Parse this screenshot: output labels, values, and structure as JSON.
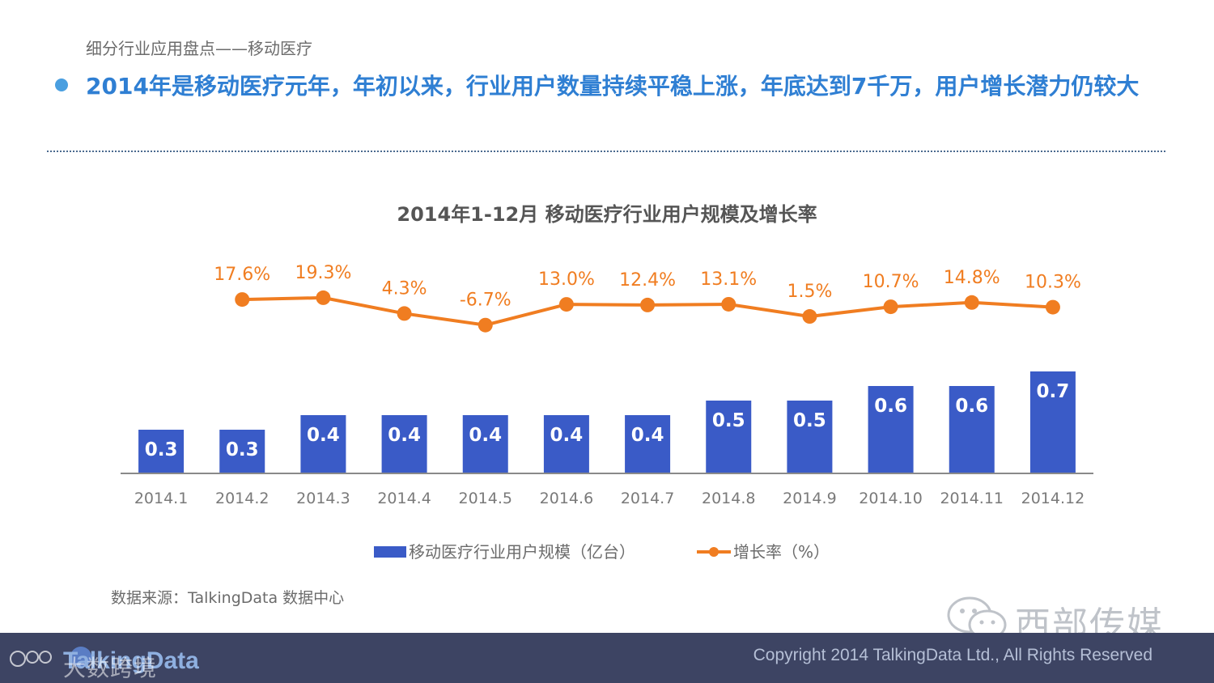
{
  "header": {
    "section_title": "细分行业应用盘点——移动医疗",
    "headline": "2014年是移动医疗元年，年初以来，行业用户数量持续平稳上涨，年底达到7千万，用户增长潜力仍较大"
  },
  "colors": {
    "bar": "#3a5bc7",
    "line": "#f07d21",
    "headline": "#2f7fd3",
    "footer_bg": "#3d4463"
  },
  "chart_data": {
    "type": "bar+line",
    "title": "2014年1-12月 移动医疗行业用户规模及增长率",
    "categories": [
      "2014.1",
      "2014.2",
      "2014.3",
      "2014.4",
      "2014.5",
      "2014.6",
      "2014.7",
      "2014.8",
      "2014.9",
      "2014.10",
      "2014.11",
      "2014.12"
    ],
    "series": [
      {
        "name": "移动医疗行业用户规模（亿台）",
        "type": "bar",
        "values": [
          0.3,
          0.3,
          0.4,
          0.4,
          0.4,
          0.4,
          0.4,
          0.5,
          0.5,
          0.6,
          0.6,
          0.7
        ],
        "labels": [
          "0.3",
          "0.3",
          "0.4",
          "0.4",
          "0.4",
          "0.4",
          "0.4",
          "0.5",
          "0.5",
          "0.6",
          "0.6",
          "0.7"
        ]
      },
      {
        "name": "增长率（%）",
        "type": "line",
        "values": [
          null,
          17.6,
          19.3,
          4.3,
          -6.7,
          13.0,
          12.4,
          13.1,
          1.5,
          10.7,
          14.8,
          10.3
        ],
        "labels": [
          "",
          "17.6%",
          "19.3%",
          "4.3%",
          "-6.7%",
          "13.0%",
          "12.4%",
          "13.1%",
          "1.5%",
          "10.7%",
          "14.8%",
          "10.3%"
        ]
      }
    ],
    "legend_position": "bottom"
  },
  "source": "数据来源：TalkingData 数据中心",
  "watermark": {
    "wechat_name": "西部传媒",
    "wechat_icon": "wechat-icon"
  },
  "footer": {
    "logo_text": "TalkingData",
    "logo_overlay_text": "大数跨境",
    "logo_icon": "talkingdata-logo-icon",
    "copyright": "Copyright 2014 TalkingData Ltd., All Rights Reserved"
  }
}
